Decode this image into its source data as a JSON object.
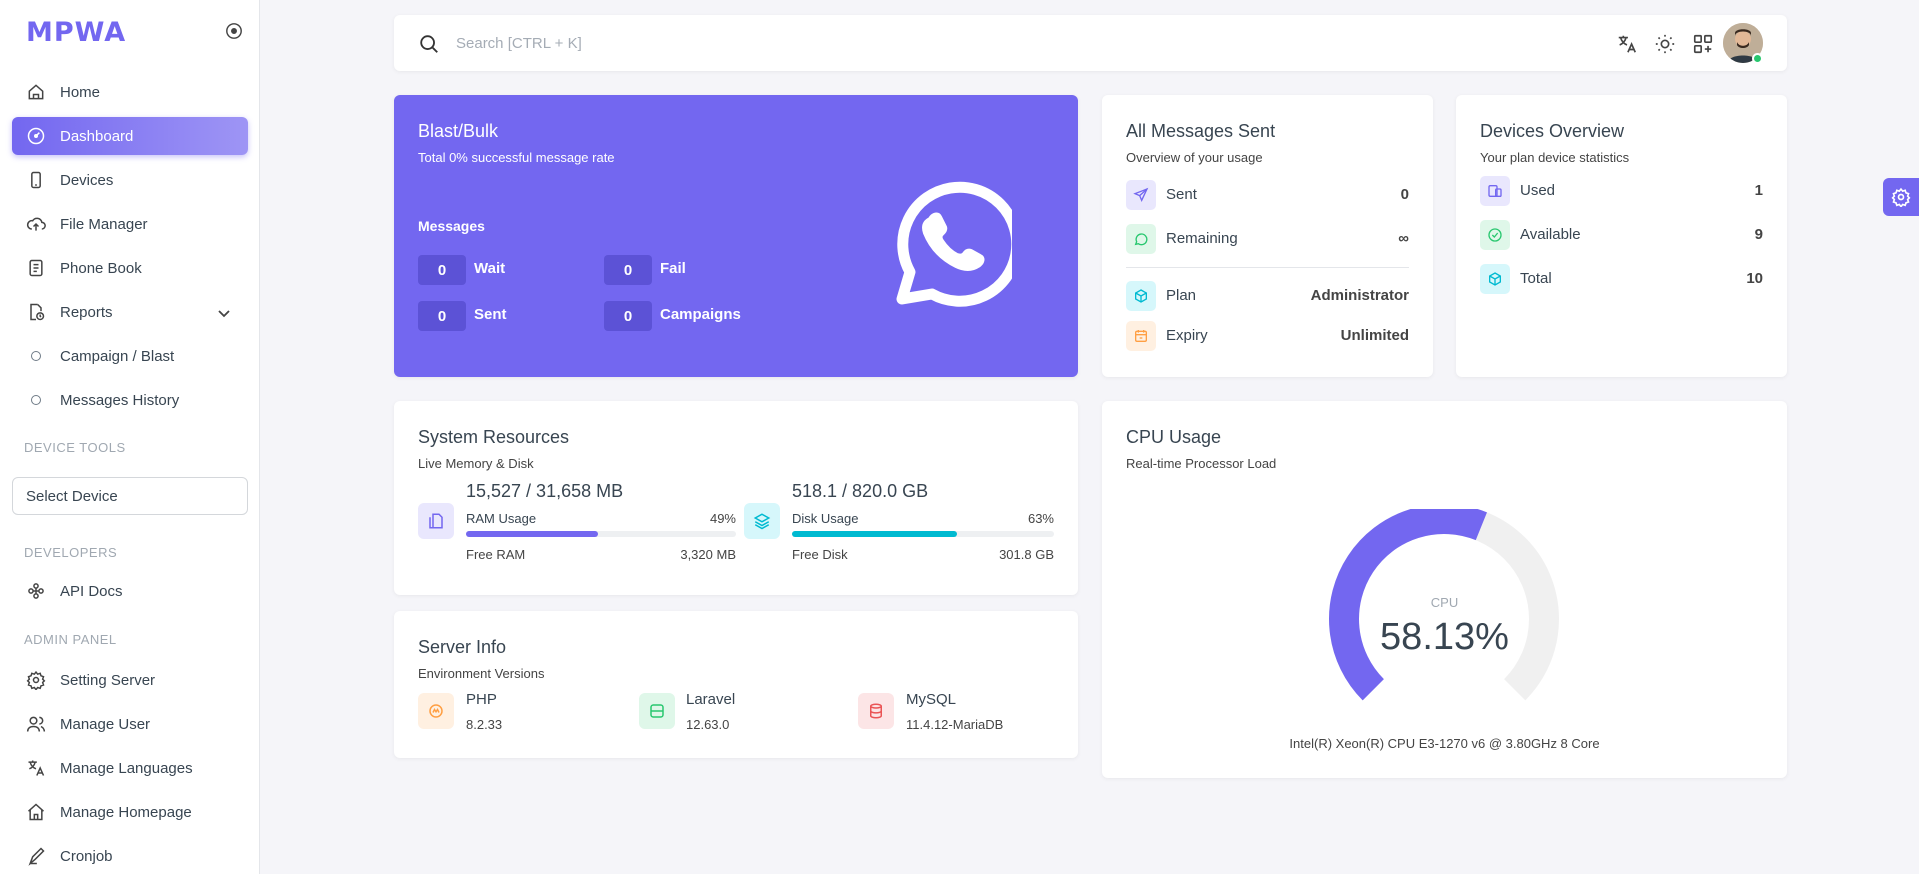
{
  "brand": {
    "logo_text": "MPWA"
  },
  "sidebar": {
    "items": [
      {
        "label": "Home",
        "icon": "home-icon"
      },
      {
        "label": "Dashboard",
        "icon": "dashboard-icon",
        "active": true
      },
      {
        "label": "Devices",
        "icon": "device-icon"
      },
      {
        "label": "File Manager",
        "icon": "cloud-upload-icon"
      },
      {
        "label": "Phone Book",
        "icon": "phone-book-icon"
      },
      {
        "label": "Reports",
        "icon": "reports-icon",
        "expanded": true
      }
    ],
    "report_subitems": [
      {
        "label": "Campaign / Blast"
      },
      {
        "label": "Messages History"
      }
    ],
    "device_tools_header": "DEVICE TOOLS",
    "select_device_label": "Select Device",
    "developers_header": "DEVELOPERS",
    "developers_items": [
      {
        "label": "API Docs",
        "icon": "api-icon"
      }
    ],
    "admin_header": "ADMIN PANEL",
    "admin_items": [
      {
        "label": "Setting Server",
        "icon": "gear-icon"
      },
      {
        "label": "Manage User",
        "icon": "users-icon"
      },
      {
        "label": "Manage Languages",
        "icon": "language-icon"
      },
      {
        "label": "Manage Homepage",
        "icon": "homepage-icon"
      },
      {
        "label": "Cronjob",
        "icon": "cron-icon"
      }
    ]
  },
  "topbar": {
    "search_placeholder": "Search [CTRL + K]",
    "icons": [
      "translate-icon",
      "sun-icon",
      "apps-add-icon"
    ]
  },
  "blast": {
    "title": "Blast/Bulk",
    "subtitle": "Total 0% successful message rate",
    "messages_label": "Messages",
    "stats": [
      {
        "value": "0",
        "label": "Wait"
      },
      {
        "value": "0",
        "label": "Fail"
      },
      {
        "value": "0",
        "label": "Sent"
      },
      {
        "value": "0",
        "label": "Campaigns"
      }
    ]
  },
  "all_messages": {
    "title": "All Messages Sent",
    "subtitle": "Overview of your usage",
    "rows": [
      {
        "label": "Sent",
        "value": "0",
        "icon": "send-icon"
      },
      {
        "label": "Remaining",
        "value": "∞",
        "icon": "chat-icon"
      },
      {
        "label": "Plan",
        "value": "Administrator",
        "icon": "box-icon"
      },
      {
        "label": "Expiry",
        "value": "Unlimited",
        "icon": "calendar-icon"
      }
    ]
  },
  "devices_overview": {
    "title": "Devices Overview",
    "subtitle": "Your plan device statistics",
    "rows": [
      {
        "label": "Used",
        "value": "1",
        "icon": "devices-icon"
      },
      {
        "label": "Available",
        "value": "9",
        "icon": "check-circle-icon"
      },
      {
        "label": "Total",
        "value": "10",
        "icon": "box-icon"
      }
    ]
  },
  "system_resources": {
    "title": "System Resources",
    "subtitle": "Live Memory & Disk",
    "ram": {
      "big": "15,527 / 31,658 MB",
      "label": "RAM Usage",
      "percent_text": "49%",
      "percent": 49,
      "free_label": "Free RAM",
      "free_value": "3,320 MB",
      "color": "#7367f0"
    },
    "disk": {
      "big": "518.1 / 820.0 GB",
      "label": "Disk Usage",
      "percent_text": "63%",
      "percent": 63,
      "free_label": "Free Disk",
      "free_value": "301.8 GB",
      "color": "#00bad1"
    }
  },
  "server_info": {
    "title": "Server Info",
    "subtitle": "Environment Versions",
    "items": [
      {
        "name": "PHP",
        "version": "8.2.33",
        "icon": "php-icon"
      },
      {
        "name": "Laravel",
        "version": "12.63.0",
        "icon": "server-icon"
      },
      {
        "name": "MySQL",
        "version": "11.4.12-MariaDB",
        "icon": "database-icon"
      }
    ]
  },
  "cpu": {
    "title": "CPU Usage",
    "subtitle": "Real-time Processor Load",
    "label": "CPU",
    "value_text": "58.13%",
    "percent": 58.13,
    "model": "Intel(R) Xeon(R) CPU E3-1270 v6 @ 3.80GHz 8 Core",
    "accent": "#7367f0",
    "track": "#f0f0f0"
  }
}
